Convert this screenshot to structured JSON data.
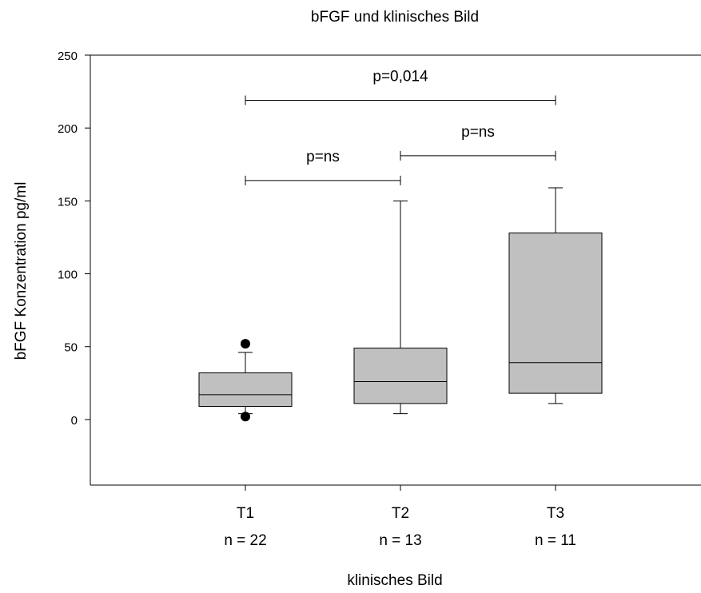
{
  "chart_data": {
    "type": "box",
    "title": "bFGF und klinisches Bild",
    "xlabel": "klinisches Bild",
    "ylabel": "bFGF Konzentration pg/ml",
    "ylim": [
      -45,
      250
    ],
    "yticks": [
      0,
      50,
      100,
      150,
      200,
      250
    ],
    "box_color": "#c0c0c0",
    "categories": [
      "T1",
      "T2",
      "T3"
    ],
    "counts": [
      "n = 22",
      "n = 13",
      "n = 11"
    ],
    "boxes": [
      {
        "name": "T1",
        "whisker_low": 4,
        "q1": 9,
        "median": 17,
        "q3": 32,
        "whisker_high": 46,
        "outliers": [
          52,
          2
        ]
      },
      {
        "name": "T2",
        "whisker_low": 4,
        "q1": 11,
        "median": 26,
        "q3": 49,
        "whisker_high": 150,
        "outliers": []
      },
      {
        "name": "T3",
        "whisker_low": 11,
        "q1": 18,
        "median": 39,
        "q3": 128,
        "whisker_high": 159,
        "outliers": []
      }
    ],
    "comparisons": [
      {
        "from": "T1",
        "to": "T3",
        "y": 219,
        "label": "p=0,014"
      },
      {
        "from": "T1",
        "to": "T2",
        "y": 164,
        "label": "p=ns"
      },
      {
        "from": "T2",
        "to": "T3",
        "y": 181,
        "label": "p=ns"
      }
    ]
  }
}
